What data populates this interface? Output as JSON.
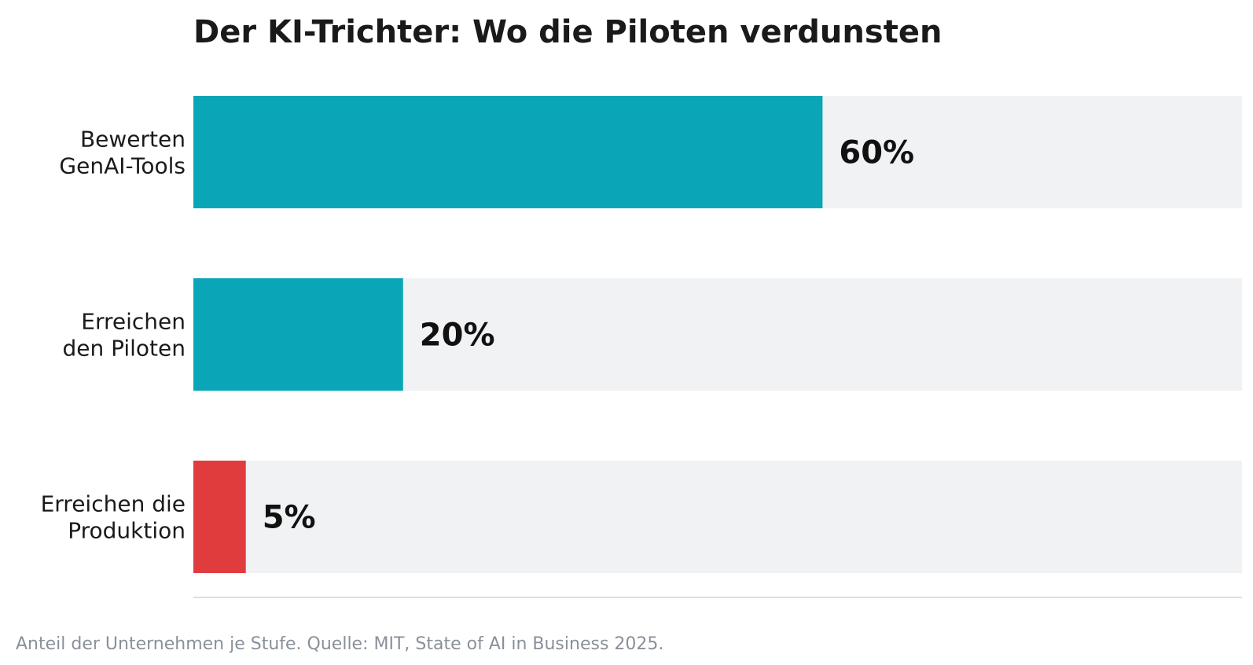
{
  "chart_data": {
    "type": "bar",
    "orientation": "horizontal",
    "title": "Der KI-Trichter: Wo die Piloten verdunsten",
    "categories": [
      [
        "Bewerten",
        "GenAI-Tools"
      ],
      [
        "Erreichen",
        "den Piloten"
      ],
      [
        "Erreichen die",
        "Produktion"
      ]
    ],
    "values": [
      60,
      20,
      5
    ],
    "value_labels": [
      "60%",
      "20%",
      "5%"
    ],
    "xlim": [
      0,
      100
    ],
    "grid": false,
    "bar_colors": [
      "#0aa6b8",
      "#0aa6b8",
      "#e03c3e"
    ],
    "track_color": "#f1f2f4",
    "axis_line_color": "#dcdfe3"
  },
  "caption": "Anteil der Unternehmen je Stufe. Quelle: MIT, State of AI in Business 2025."
}
